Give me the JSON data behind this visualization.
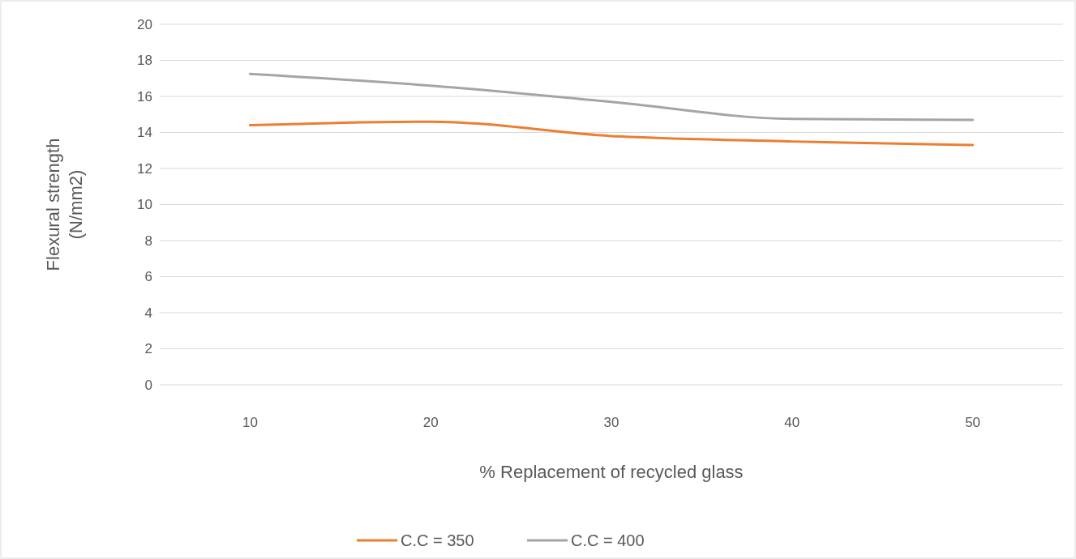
{
  "chart_data": {
    "type": "line",
    "xlabel": "% Replacement of recycled glass",
    "ylabel": "Flexural strength (N/mm2)",
    "categories": [
      "10",
      "20",
      "30",
      "40",
      "50"
    ],
    "series": [
      {
        "name": "C.C = 350",
        "color": "#ed7d31",
        "values": [
          14.4,
          14.6,
          13.8,
          13.5,
          13.3
        ]
      },
      {
        "name": "C.C = 400",
        "color": "#a5a5a5",
        "values": [
          17.25,
          16.6,
          15.7,
          14.75,
          14.7
        ]
      }
    ],
    "ylim": [
      0,
      20
    ],
    "yticks": [
      0,
      2,
      4,
      6,
      8,
      10,
      12,
      14,
      16,
      18,
      20
    ],
    "grid": "y",
    "legend": "bottom",
    "marker": "none",
    "line_style": "solid"
  }
}
